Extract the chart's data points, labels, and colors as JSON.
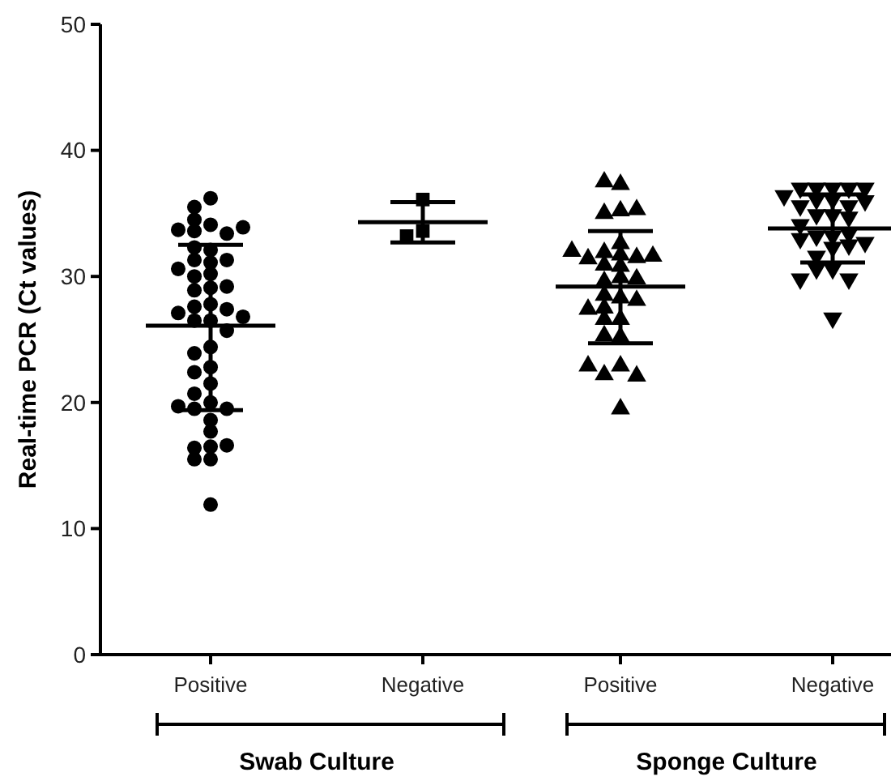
{
  "chart_data": [
    {
      "type": "scatter",
      "ylabel": "Real-time PCR (Ct values)",
      "xlabel": "Swab Culture",
      "categories": [
        "Positive",
        "Negative"
      ],
      "ylim": [
        0,
        50
      ],
      "yticks": [
        0,
        10,
        20,
        30,
        40,
        50
      ],
      "grid": false,
      "series": [
        {
          "type": "box",
          "color": "#000000",
          "boxes": [
            {
              "low": 19.4,
              "q1": 26.1,
              "median": 26.1,
              "q3": 26.1,
              "high": 32.5
            },
            {
              "low": 32.7,
              "q1": 34.3,
              "median": 34.3,
              "q3": 34.3,
              "high": 35.9
            }
          ]
        },
        {
          "color": "#000000",
          "marker": "circle",
          "x": [
            "Positive",
            "Positive",
            "Positive",
            "Positive",
            "Positive",
            "Positive",
            "Positive",
            "Positive",
            "Positive",
            "Positive",
            "Positive",
            "Positive",
            "Positive",
            "Positive",
            "Positive",
            "Positive",
            "Positive",
            "Positive",
            "Positive",
            "Positive",
            "Positive",
            "Positive",
            "Positive",
            "Positive",
            "Positive",
            "Positive",
            "Positive",
            "Positive",
            "Positive",
            "Positive",
            "Positive",
            "Positive",
            "Positive",
            "Positive",
            "Positive",
            "Positive",
            "Positive",
            "Positive",
            "Positive",
            "Positive",
            "Positive",
            "Positive",
            "Positive",
            "Positive",
            "Positive"
          ],
          "values": [
            36.2,
            35.5,
            34.1,
            33.6,
            33.4,
            33.7,
            33.9,
            34.5,
            32.1,
            32.3,
            31.3,
            31.1,
            31.3,
            30.6,
            30.2,
            30.0,
            29.1,
            29.2,
            28.9,
            27.8,
            27.6,
            27.4,
            27.1,
            26.5,
            26.5,
            26.8,
            25.7,
            24.4,
            23.9,
            22.8,
            22.4,
            21.5,
            20.0,
            19.5,
            19.5,
            19.7,
            20.7,
            18.6,
            17.7,
            16.5,
            15.5,
            15.5,
            16.4,
            16.6,
            11.9
          ]
        },
        {
          "color": "#000000",
          "marker": "square",
          "x": [
            "Negative",
            "Negative",
            "Negative"
          ],
          "values": [
            36.1,
            33.6,
            33.2
          ]
        }
      ]
    },
    {
      "type": "scatter",
      "xlabel": "Sponge Culture",
      "categories": [
        "Positive",
        "Negative"
      ],
      "ylim": [
        0,
        50
      ],
      "yticks": [
        0,
        10,
        20,
        30,
        40,
        50
      ],
      "tick_labels": "x",
      "grid": false,
      "series": [
        {
          "type": "box",
          "color": "#000000",
          "boxes": [
            {
              "low": 24.7,
              "q1": 29.2,
              "median": 29.2,
              "q3": 29.2,
              "high": 33.6
            },
            {
              "low": 31.1,
              "q1": 33.8,
              "median": 33.8,
              "q3": 33.8,
              "high": 36.5
            }
          ]
        },
        {
          "color": "#000000",
          "marker": "triangle",
          "x": [
            "Positive",
            "Positive",
            "Positive",
            "Positive",
            "Positive",
            "Positive",
            "Positive",
            "Positive",
            "Positive",
            "Positive",
            "Positive",
            "Positive",
            "Positive",
            "Positive",
            "Positive",
            "Positive",
            "Positive",
            "Positive",
            "Positive",
            "Positive",
            "Positive",
            "Positive",
            "Positive",
            "Positive",
            "Positive",
            "Positive",
            "Positive",
            "Positive",
            "Positive",
            "Positive",
            "Positive"
          ],
          "values": [
            37.3,
            37.5,
            35.2,
            35.0,
            35.3,
            32.6,
            31.9,
            31.7,
            31.5,
            30.9,
            30.8,
            31.4,
            31.6,
            32.0,
            29.9,
            29.6,
            29.8,
            28.3,
            28.5,
            28.1,
            27.5,
            26.6,
            27.4,
            26.6,
            25.2,
            25.3,
            22.9,
            22.2,
            22.1,
            22.9,
            19.5
          ]
        },
        {
          "color": "#000000",
          "marker": "triangle-down",
          "x": [
            "Negative",
            "Negative",
            "Negative",
            "Negative",
            "Negative",
            "Negative",
            "Negative",
            "Negative",
            "Negative",
            "Negative",
            "Negative",
            "Negative",
            "Negative",
            "Negative",
            "Negative",
            "Negative",
            "Negative",
            "Negative",
            "Negative",
            "Negative",
            "Negative",
            "Negative",
            "Negative",
            "Negative",
            "Negative",
            "Negative",
            "Negative",
            "Negative"
          ],
          "values": [
            37.0,
            37.0,
            37.0,
            37.0,
            37.0,
            36.4,
            36.1,
            36.1,
            35.6,
            35.6,
            36.0,
            34.9,
            34.9,
            34.7,
            34.1,
            33.2,
            33.2,
            32.5,
            33.4,
            33.0,
            32.7,
            32.3,
            31.6,
            30.6,
            30.6,
            29.8,
            29.8,
            26.7
          ]
        }
      ]
    }
  ]
}
